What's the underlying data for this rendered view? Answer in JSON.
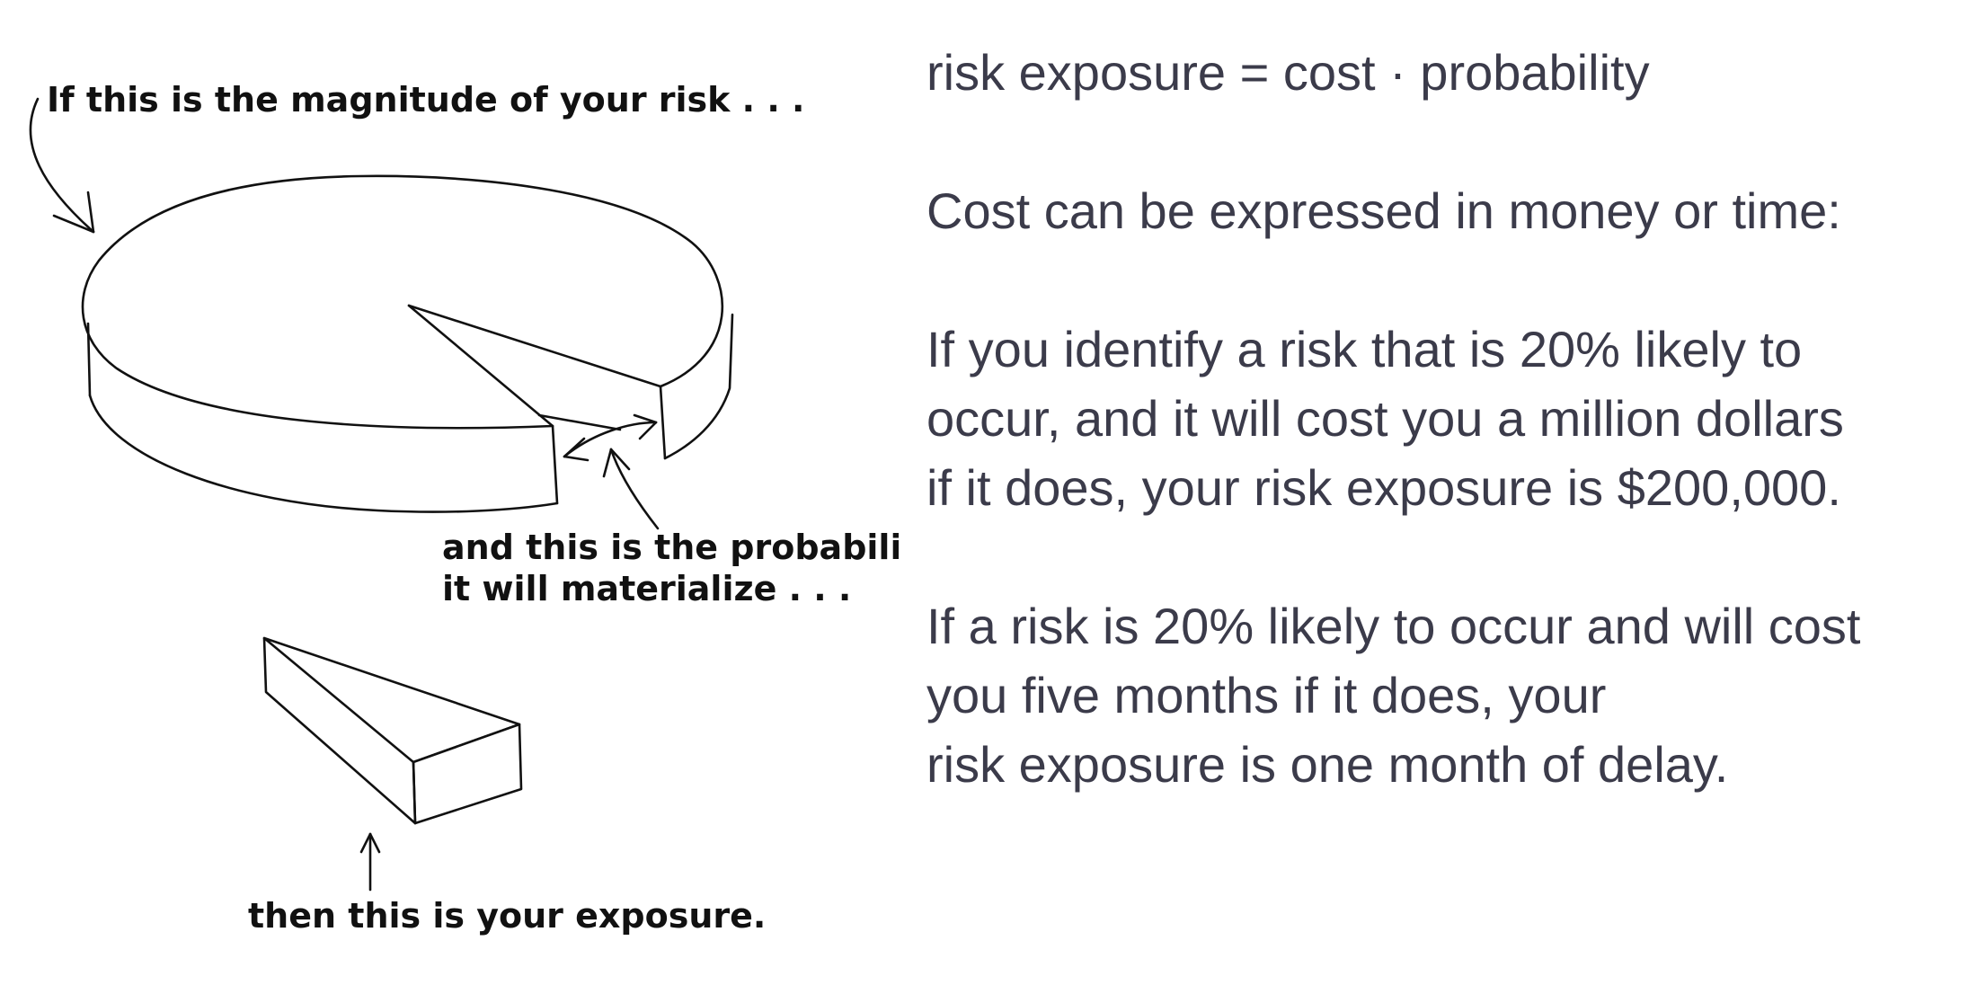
{
  "illustration": {
    "label_magnitude": "If this is the magnitude of your risk . . .",
    "label_probability_line1": "and this is the probability",
    "label_probability_line2": "it will materialize . . .",
    "label_exposure": "then this is your exposure."
  },
  "text": {
    "formula": "risk exposure = cost · probability",
    "cost_intro": "Cost can be expressed in money or time:",
    "money_example": [
      "If you identify a risk that is 20% likely to",
      "occur, and it will cost you a million dollars",
      "if it does, your risk exposure is $200,000."
    ],
    "time_example": [
      "If a risk is 20% likely to occur and will cost",
      "you five months if it does, your",
      "risk exposure is one month of delay."
    ]
  },
  "colors": {
    "body_text": "#3b3b4a",
    "sketch_ink": "#111111",
    "background": "#ffffff"
  }
}
